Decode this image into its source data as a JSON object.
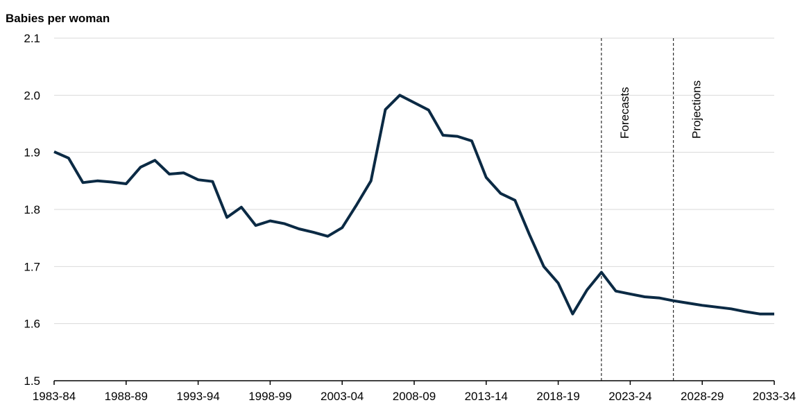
{
  "chart_data": {
    "type": "line",
    "y_label": "Babies per woman",
    "categories": [
      "1983-84",
      null,
      null,
      null,
      null,
      "1988-89",
      null,
      null,
      null,
      null,
      "1993-94",
      null,
      null,
      null,
      null,
      "1998-99",
      null,
      null,
      null,
      null,
      "2003-04",
      null,
      null,
      null,
      null,
      "2008-09",
      null,
      null,
      null,
      null,
      "2013-14",
      null,
      null,
      null,
      null,
      "2018-19",
      null,
      null,
      null,
      null,
      "2023-24",
      null,
      null,
      null,
      null,
      "2028-29",
      null,
      null,
      null,
      null,
      "2033-34"
    ],
    "values": [
      1.901,
      1.89,
      1.847,
      1.85,
      1.848,
      1.845,
      1.874,
      1.886,
      1.862,
      1.864,
      1.852,
      1.849,
      1.786,
      1.804,
      1.772,
      1.78,
      1.775,
      1.766,
      1.76,
      1.753,
      1.768,
      1.808,
      1.85,
      1.975,
      2.0,
      1.987,
      1.974,
      1.93,
      1.928,
      1.92,
      1.856,
      1.828,
      1.816,
      1.756,
      1.7,
      1.671,
      1.617,
      1.659,
      1.69,
      1.657,
      1.652,
      1.647,
      1.645,
      1.64,
      1.636,
      1.632,
      1.629,
      1.626,
      1.621,
      1.617,
      1.617
    ],
    "color": "#0b2a44",
    "ylim": [
      1.5,
      2.1
    ],
    "yticks": [
      1.5,
      1.6,
      1.7,
      1.8,
      1.9,
      {
        "value": 2,
        "label": "2.0"
      },
      2.1
    ],
    "grid": true,
    "annotations": [
      {
        "label": "Forecasts",
        "at": 38
      },
      {
        "label": "Projections",
        "at": 43
      }
    ]
  }
}
